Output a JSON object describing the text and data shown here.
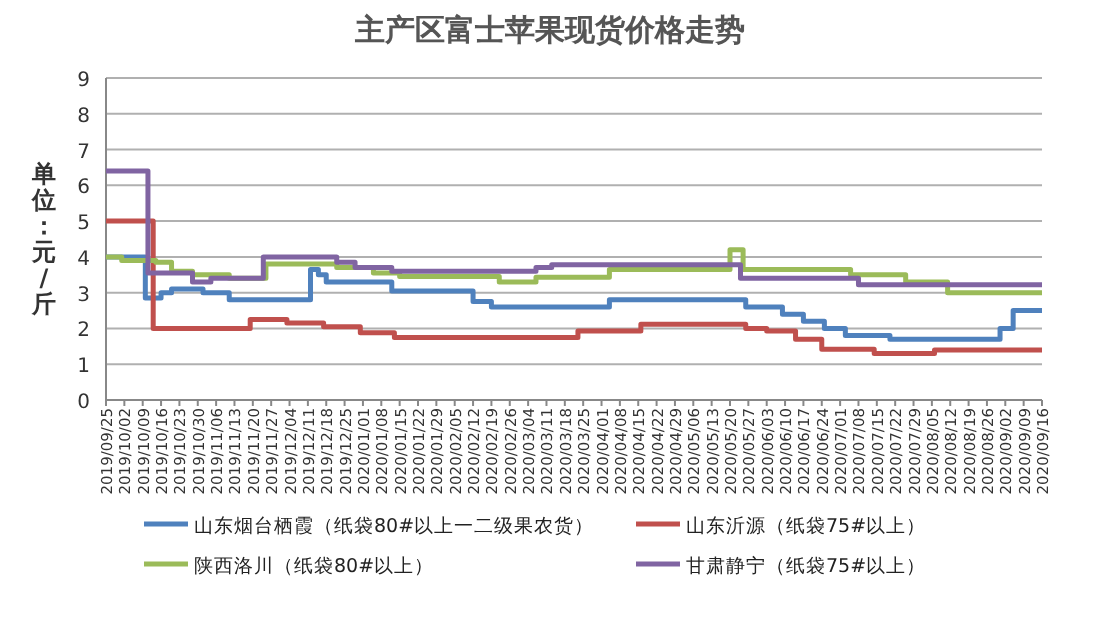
{
  "chart_data": {
    "type": "step",
    "title": "主产区富士苹果现货价格走势",
    "ylabel": "单位：元/斤",
    "xlim": [
      "2019-09-25",
      "2020-09-16"
    ],
    "ylim": [
      0,
      9
    ],
    "yticks": [
      0,
      1,
      2,
      3,
      4,
      5,
      6,
      7,
      8,
      9
    ],
    "grid": "y",
    "legend": "bottom",
    "line_style": "solid",
    "marker": "none",
    "xticks": [
      {
        "value": "2019-09-25",
        "label": "2019/09/25"
      },
      {
        "value": "2019-10-02",
        "label": "2019/10/02"
      },
      {
        "value": "2019-10-09",
        "label": "2019/10/09"
      },
      {
        "value": "2019-10-16",
        "label": "2019/10/16"
      },
      {
        "value": "2019-10-23",
        "label": "2019/10/23"
      },
      {
        "value": "2019-10-30",
        "label": "2019/10/30"
      },
      {
        "value": "2019-11-06",
        "label": "2019/11/06"
      },
      {
        "value": "2019-11-13",
        "label": "2019/11/13"
      },
      {
        "value": "2019-11-20",
        "label": "2019/11/20"
      },
      {
        "value": "2019-11-27",
        "label": "2019/11/27"
      },
      {
        "value": "2019-12-04",
        "label": "2019/12/04"
      },
      {
        "value": "2019-12-11",
        "label": "2019/12/11"
      },
      {
        "value": "2019-12-18",
        "label": "2019/12/18"
      },
      {
        "value": "2019-12-25",
        "label": "2019/12/25"
      },
      {
        "value": "2020-01-01",
        "label": "2020/01/01"
      },
      {
        "value": "2020-01-08",
        "label": "2020/01/08"
      },
      {
        "value": "2020-01-15",
        "label": "2020/01/15"
      },
      {
        "value": "2020-01-22",
        "label": "2020/01/22"
      },
      {
        "value": "2020-01-29",
        "label": "2020/01/29"
      },
      {
        "value": "2020-02-05",
        "label": "2020/02/05"
      },
      {
        "value": "2020-02-12",
        "label": "2020/02/12"
      },
      {
        "value": "2020-02-19",
        "label": "2020/02/19"
      },
      {
        "value": "2020-02-26",
        "label": "2020/02/26"
      },
      {
        "value": "2020-03-04",
        "label": "2020/03/04"
      },
      {
        "value": "2020-03-11",
        "label": "2020/03/11"
      },
      {
        "value": "2020-03-18",
        "label": "2020/03/18"
      },
      {
        "value": "2020-03-25",
        "label": "2020/03/25"
      },
      {
        "value": "2020-04-01",
        "label": "2020/04/01"
      },
      {
        "value": "2020-04-08",
        "label": "2020/04/08"
      },
      {
        "value": "2020-04-15",
        "label": "2020/04/15"
      },
      {
        "value": "2020-04-22",
        "label": "2020/04/22"
      },
      {
        "value": "2020-04-29",
        "label": "2020/04/29"
      },
      {
        "value": "2020-05-06",
        "label": "2020/05/06"
      },
      {
        "value": "2020-05-13",
        "label": "2020/05/13"
      },
      {
        "value": "2020-05-20",
        "label": "2020/05/20"
      },
      {
        "value": "2020-05-27",
        "label": "2020/05/27"
      },
      {
        "value": "2020-06-03",
        "label": "2020/06/03"
      },
      {
        "value": "2020-06-10",
        "label": "2020/06/10"
      },
      {
        "value": "2020-06-17",
        "label": "2020/06/17"
      },
      {
        "value": "2020-06-24",
        "label": "2020/06/24"
      },
      {
        "value": "2020-07-01",
        "label": "2020/07/01"
      },
      {
        "value": "2020-07-08",
        "label": "2020/07/08"
      },
      {
        "value": "2020-07-15",
        "label": "2020/07/15"
      },
      {
        "value": "2020-07-22",
        "label": "2020/07/22"
      },
      {
        "value": "2020-07-29",
        "label": "2020/07/29"
      },
      {
        "value": "2020-08-05",
        "label": "2020/08/05"
      },
      {
        "value": "2020-08-12",
        "label": "2020/08/12"
      },
      {
        "value": "2020-08-19",
        "label": "2020/08/19"
      },
      {
        "value": "2020-08-26",
        "label": "2020/08/26"
      },
      {
        "value": "2020-09-02",
        "label": "2020/09/02"
      },
      {
        "value": "2020-09-09",
        "label": "2020/09/09"
      },
      {
        "value": "2020-09-16",
        "label": "2020/09/16"
      }
    ],
    "series": [
      {
        "name": "山东烟台栖霞（纸袋80#以上一二级果农货）",
        "color": "#4f81bd",
        "x": [
          "2019-09-25",
          "2019-10-10",
          "2019-10-16",
          "2019-10-20",
          "2019-11-01",
          "2019-11-11",
          "2019-12-12",
          "2019-12-15",
          "2019-12-18",
          "2020-01-12",
          "2020-02-12",
          "2020-02-19",
          "2020-04-04",
          "2020-05-26",
          "2020-06-09",
          "2020-06-17",
          "2020-06-25",
          "2020-07-03",
          "2020-07-20",
          "2020-08-31",
          "2020-09-05",
          "2020-09-16"
        ],
        "values": [
          4.0,
          2.85,
          3.0,
          3.1,
          3.0,
          2.8,
          3.65,
          3.5,
          3.3,
          3.05,
          2.75,
          2.6,
          2.8,
          2.6,
          2.4,
          2.2,
          2.0,
          1.8,
          1.7,
          2.0,
          2.5,
          2.5
        ]
      },
      {
        "name": "山东沂源（纸袋75#以上）",
        "color": "#c0504d",
        "x": [
          "2019-09-25",
          "2019-10-13",
          "2019-11-19",
          "2019-12-03",
          "2019-12-17",
          "2019-12-31",
          "2020-01-13",
          "2020-03-23",
          "2020-04-16",
          "2020-05-26",
          "2020-06-03",
          "2020-06-14",
          "2020-06-24",
          "2020-07-14",
          "2020-08-06",
          "2020-09-16"
        ],
        "values": [
          5.0,
          2.0,
          2.25,
          2.15,
          2.05,
          1.88,
          1.75,
          1.93,
          2.12,
          2.0,
          1.93,
          1.7,
          1.42,
          1.3,
          1.4,
          1.4
        ]
      },
      {
        "name": "陕西洛川（纸袋80#以上）",
        "color": "#9bbb59",
        "x": [
          "2019-09-25",
          "2019-10-01",
          "2019-10-14",
          "2019-10-20",
          "2019-10-28",
          "2019-11-11",
          "2019-11-25",
          "2019-12-22",
          "2020-01-05",
          "2020-01-15",
          "2020-02-22",
          "2020-03-07",
          "2020-04-04",
          "2020-05-20",
          "2020-05-25",
          "2020-07-05",
          "2020-07-26",
          "2020-08-11",
          "2020-09-16"
        ],
        "values": [
          4.0,
          3.9,
          3.85,
          3.6,
          3.5,
          3.4,
          3.8,
          3.7,
          3.55,
          3.45,
          3.3,
          3.43,
          3.65,
          4.2,
          3.65,
          3.5,
          3.3,
          3.0,
          3.0
        ]
      },
      {
        "name": "甘肃静宁（纸袋75#以上）",
        "color": "#8064a2",
        "x": [
          "2019-09-25",
          "2019-10-11",
          "2019-10-28",
          "2019-11-04",
          "2019-11-24",
          "2019-12-22",
          "2019-12-29",
          "2020-01-12",
          "2020-03-07",
          "2020-03-13",
          "2020-05-24",
          "2020-07-08",
          "2020-09-16"
        ],
        "values": [
          6.4,
          3.55,
          3.3,
          3.4,
          4.0,
          3.85,
          3.7,
          3.6,
          3.7,
          3.78,
          3.4,
          3.22,
          3.22
        ]
      }
    ]
  }
}
